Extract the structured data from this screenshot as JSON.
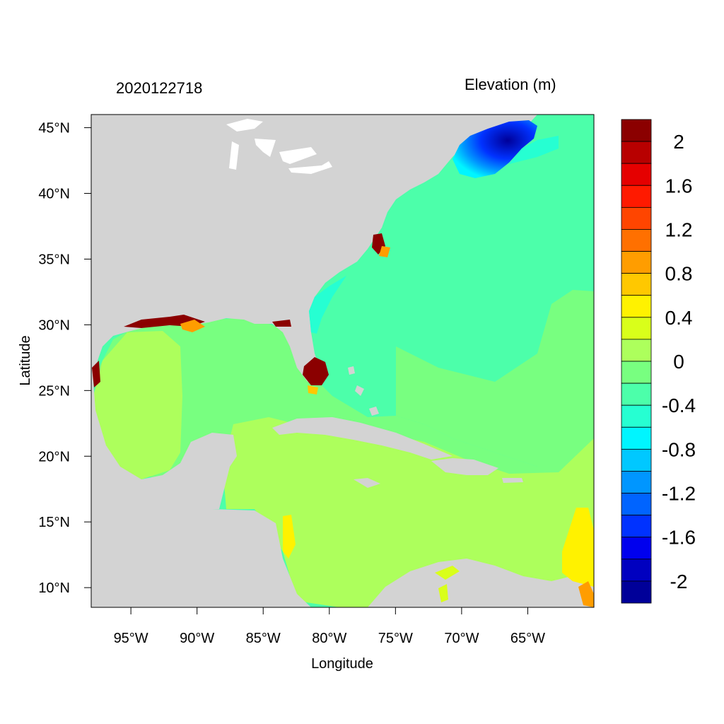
{
  "header": {
    "date_stamp": "2020122718",
    "variable_label": "Elevation (m)"
  },
  "axes": {
    "xlabel": "Longitude",
    "ylabel": "Latitude",
    "x_ticks": [
      "95°W",
      "90°W",
      "85°W",
      "80°W",
      "75°W",
      "70°W",
      "65°W"
    ],
    "y_ticks": [
      "45°N",
      "40°N",
      "35°N",
      "30°N",
      "25°N",
      "20°N",
      "15°N",
      "10°N"
    ],
    "lon_range": [
      -98,
      -60
    ],
    "lat_range": [
      8.5,
      46
    ]
  },
  "colorbar": {
    "labels": [
      "2",
      "1.6",
      "1.2",
      "0.8",
      "0.4",
      "0",
      "-0.4",
      "-0.8",
      "-1.2",
      "-1.6",
      "-2"
    ],
    "colors": [
      "#8b0000",
      "#b80000",
      "#e50000",
      "#ff1a00",
      "#ff4500",
      "#ff7000",
      "#ff9d00",
      "#ffc800",
      "#fff200",
      "#d9ff1a",
      "#adff5c",
      "#78ff80",
      "#4cffaa",
      "#26ffd2",
      "#00f5ff",
      "#00c8ff",
      "#0096ff",
      "#0064ff",
      "#0032ff",
      "#0000ee",
      "#0000c0",
      "#000099"
    ]
  },
  "colors": {
    "land": "#d3d3d3",
    "ocean_gulf": "#78ff80",
    "ocean_atlantic": "#4cffaa",
    "caribbean": "#adff5c",
    "maine_low": "#0032ff",
    "flood_high": "#8b0000"
  }
}
